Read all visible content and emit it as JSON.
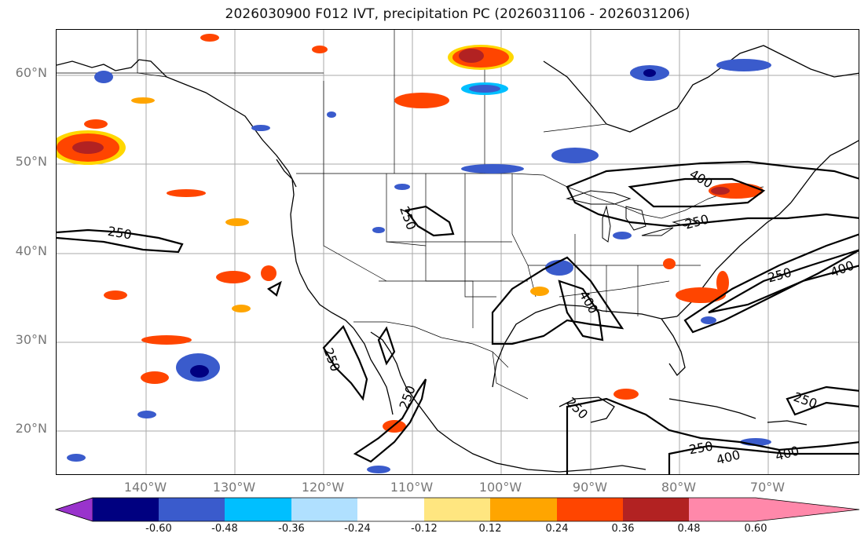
{
  "title": "2026030900 F012 IVT, precipitation PC (2026031106 - 2026031206)",
  "latitude_labels": [
    "60°N",
    "50°N",
    "40°N",
    "30°N",
    "20°N"
  ],
  "longitude_labels": [
    "140°W",
    "130°W",
    "120°W",
    "110°W",
    "100°W",
    "90°W",
    "80°W",
    "70°W"
  ],
  "contour_labels": [
    "250",
    "250",
    "250",
    "250",
    "250",
    "250",
    "250",
    "250",
    "400",
    "400",
    "400",
    "400",
    "400",
    "250"
  ],
  "colorbar": {
    "tick_labels": [
      "-0.60",
      "-0.48",
      "-0.36",
      "-0.24",
      "-0.12",
      "0.12",
      "0.24",
      "0.36",
      "0.48",
      "0.60"
    ],
    "colors": [
      "#9933cc",
      "#000080",
      "#3a5bcc",
      "#00bfff",
      "#b0e0ff",
      "#ffffff",
      "#ffe680",
      "#ffa500",
      "#ff4500",
      "#b22222",
      "#ff88aa"
    ]
  },
  "colors": {
    "deep_blue": "#000080",
    "mid_blue": "#3a5bcc",
    "light_blue": "#00bfff",
    "yellow": "#ffd700",
    "orange": "#ffa500",
    "red_orange": "#ff4500",
    "dark_red": "#b22222"
  }
}
